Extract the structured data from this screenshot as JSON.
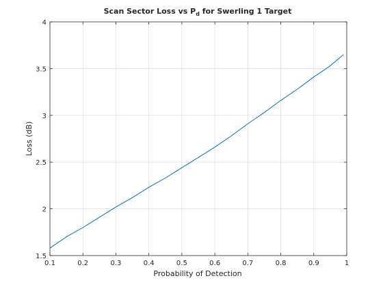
{
  "chart_data": {
    "type": "line",
    "title": "Scan Sector Loss vs P",
    "title_subscript": "d",
    "title_suffix": " for Swerling 1 Target",
    "xlabel": "Probability of Detection",
    "ylabel": "Loss (dB)",
    "xlim": [
      0.1,
      1.0
    ],
    "ylim": [
      1.5,
      4.0
    ],
    "xticks": [
      0.1,
      0.2,
      0.3,
      0.4,
      0.5,
      0.6,
      0.7,
      0.8,
      0.9,
      1.0
    ],
    "xtick_labels": [
      "0.1",
      "0.2",
      "0.3",
      "0.4",
      "0.5",
      "0.6",
      "0.7",
      "0.8",
      "0.9",
      "1"
    ],
    "yticks": [
      1.5,
      2.0,
      2.5,
      3.0,
      3.5,
      4.0
    ],
    "ytick_labels": [
      "1.5",
      "2",
      "2.5",
      "3",
      "3.5",
      "4"
    ],
    "grid": true,
    "series": [
      {
        "color": "#0072bd",
        "x": [
          0.1,
          0.15,
          0.2,
          0.25,
          0.3,
          0.35,
          0.4,
          0.45,
          0.5,
          0.55,
          0.6,
          0.65,
          0.7,
          0.75,
          0.8,
          0.85,
          0.9,
          0.95,
          0.99
        ],
        "y": [
          1.58,
          1.7,
          1.8,
          1.91,
          2.02,
          2.12,
          2.23,
          2.33,
          2.44,
          2.55,
          2.66,
          2.78,
          2.91,
          3.03,
          3.16,
          3.28,
          3.41,
          3.53,
          3.65
        ]
      }
    ]
  }
}
